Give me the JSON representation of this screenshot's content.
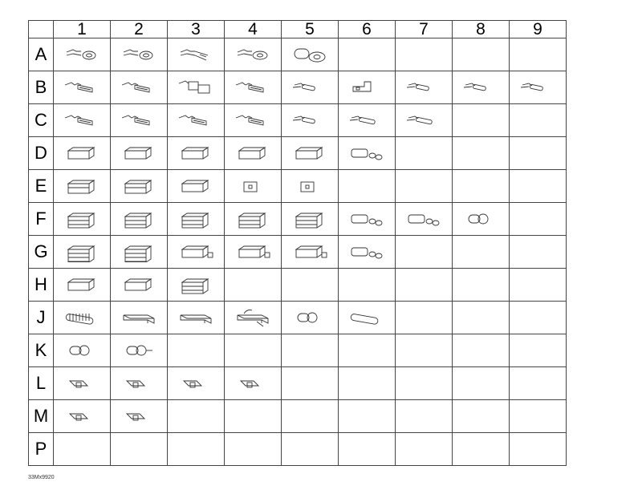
{
  "columns": [
    "1",
    "2",
    "3",
    "4",
    "5",
    "6",
    "7",
    "8",
    "9"
  ],
  "rows": [
    {
      "label": "A",
      "parts": [
        "ring",
        "ring",
        "fork",
        "ring-large",
        "ring-insulated"
      ]
    },
    {
      "label": "B",
      "parts": [
        "female-blade",
        "female-blade",
        "female-insulated",
        "female-blade",
        "bullet",
        "angle-female",
        "pin",
        "pin",
        "pin-small"
      ]
    },
    {
      "label": "C",
      "parts": [
        "male-blade",
        "male-blade",
        "male-blade",
        "male-blade",
        "bullet-male",
        "pin-long",
        "pin-long"
      ]
    },
    {
      "label": "D",
      "parts": [
        "housing-1",
        "housing-1",
        "housing-1",
        "housing-round",
        "housing-1",
        "seal-plug"
      ]
    },
    {
      "label": "E",
      "parts": [
        "housing-2",
        "housing-2s",
        "housing-lock",
        "housing-small",
        "housing-small"
      ]
    },
    {
      "label": "F",
      "parts": [
        "housing-3",
        "housing-3",
        "housing-stack",
        "housing-3",
        "housing-stack",
        "multi-seal",
        "seal-set",
        "boot"
      ]
    },
    {
      "label": "G",
      "parts": [
        "housing-4",
        "housing-4",
        "housing-seal",
        "housing-seal",
        "housing-seal",
        "multi-seal"
      ]
    },
    {
      "label": "H",
      "parts": [
        "housing-long",
        "housing-long",
        "housing-stack"
      ]
    },
    {
      "label": "J",
      "parts": [
        "corrugated",
        "cover",
        "cover",
        "cover-wired",
        "cap",
        "sleeve"
      ]
    },
    {
      "label": "K",
      "parts": [
        "grommet",
        "grommet-pin"
      ]
    },
    {
      "label": "L",
      "parts": [
        "retainer",
        "clip",
        "clip-flat",
        "clip-flat"
      ]
    },
    {
      "label": "M",
      "parts": [
        "clamp",
        "clamp"
      ]
    },
    {
      "label": "P",
      "parts": []
    }
  ],
  "footer_code": "33Mx9920"
}
